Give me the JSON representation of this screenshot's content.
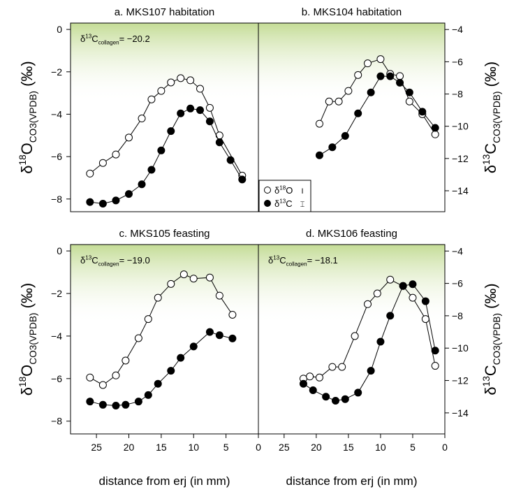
{
  "chart_data": {
    "type": "scatter",
    "xlabel": "distance from erj (in mm)",
    "left_ylabel": {
      "base": "δ",
      "sup": "18",
      "main": "O",
      "sub": "CO3(VPDB)",
      "tail": " (‰)"
    },
    "right_ylabel": {
      "base": "δ",
      "sup": "13",
      "main": "C",
      "sub": "CO3(VPDB)",
      "tail": " (‰)"
    },
    "x_range": [
      29,
      0
    ],
    "x_ticks": [
      25,
      20,
      15,
      10,
      5,
      0
    ],
    "left_y_range": [
      -8.6,
      0.3
    ],
    "left_y_ticks": [
      0,
      -2,
      -4,
      -6,
      -8
    ],
    "right_y_range": [
      -15.3,
      -3.6
    ],
    "right_y_ticks": [
      -4,
      -6,
      -8,
      -10,
      -12,
      -14
    ],
    "legend": {
      "position": "bottom-left of panel b",
      "items": [
        {
          "base": "δ",
          "sup": "18",
          "main": "O",
          "marker": "open-circle",
          "errorbar": "I"
        },
        {
          "base": "δ",
          "sup": "13",
          "main": "C",
          "marker": "filled-circle",
          "errorbar": "⌶"
        }
      ]
    },
    "panels": [
      {
        "id": "a",
        "title": "a. MKS107 habitation",
        "annotation": {
          "base": "δ",
          "sup": "13",
          "main": "C",
          "sub": "collagen",
          "value": "= −20.2"
        },
        "oxygen": {
          "x": [
            26,
            24,
            22,
            20,
            18,
            16.5,
            15,
            13.5,
            12,
            10.5,
            9,
            7.5,
            6,
            2.5
          ],
          "y": [
            -6.8,
            -6.3,
            -5.9,
            -5.1,
            -4.2,
            -3.3,
            -2.9,
            -2.5,
            -2.3,
            -2.4,
            -2.8,
            -3.7,
            -5.0,
            -6.9
          ]
        },
        "carbon": {
          "x": [
            26,
            24,
            22,
            20,
            18,
            16.5,
            15,
            13.5,
            12,
            10.5,
            9,
            7.5,
            6,
            4.3,
            2.5
          ],
          "y": [
            -14.7,
            -14.8,
            -14.6,
            -14.2,
            -13.6,
            -12.7,
            -11.5,
            -10.3,
            -9.2,
            -8.9,
            -9.0,
            -9.7,
            -11.0,
            -12.1,
            -13.3
          ]
        }
      },
      {
        "id": "b",
        "title": "b. MKS104 habitation",
        "annotation": null,
        "oxygen": {
          "x": [
            19.5,
            18,
            16.5,
            15,
            13.5,
            12,
            10,
            8.5,
            7,
            5.5,
            3.5,
            1.5
          ],
          "y": [
            -4.45,
            -3.4,
            -3.4,
            -2.9,
            -2.15,
            -1.6,
            -1.4,
            -2.1,
            -2.2,
            -3.4,
            -4.0,
            -4.95
          ]
        },
        "carbon": {
          "x": [
            19.5,
            17.5,
            15.5,
            13.5,
            11.5,
            10,
            8.5,
            7,
            5.5,
            3.5,
            1.5
          ],
          "y": [
            -11.8,
            -11.3,
            -10.6,
            -9.2,
            -7.9,
            -6.9,
            -6.9,
            -7.3,
            -7.9,
            -9.1,
            -10.1
          ]
        }
      },
      {
        "id": "c",
        "title": "c. MKS105 feasting",
        "annotation": {
          "base": "δ",
          "sup": "13",
          "main": "C",
          "sub": "collagen",
          "value": "= −19.0"
        },
        "oxygen": {
          "x": [
            26,
            24,
            22,
            20.5,
            18.5,
            17,
            15.5,
            13.5,
            11.5,
            10,
            7.5,
            6,
            4
          ],
          "y": [
            -5.95,
            -6.3,
            -5.85,
            -5.15,
            -4.1,
            -3.2,
            -2.2,
            -1.55,
            -1.1,
            -1.3,
            -1.25,
            -2.1,
            -3.0
          ]
        },
        "carbon": {
          "x": [
            26,
            24,
            22,
            20.5,
            18.5,
            17,
            15.5,
            13.5,
            12,
            10,
            7.5,
            6,
            4
          ],
          "y": [
            -13.3,
            -13.5,
            -13.55,
            -13.5,
            -13.3,
            -12.9,
            -12.2,
            -11.4,
            -10.6,
            -9.9,
            -9.0,
            -9.2,
            -9.4
          ]
        }
      },
      {
        "id": "d",
        "title": "d. MKS106 feasting",
        "annotation": {
          "base": "δ",
          "sup": "13",
          "main": "C",
          "sub": "collagen",
          "value": "= −18.1"
        },
        "oxygen": {
          "x": [
            22,
            21,
            19.5,
            17.5,
            16,
            14,
            12,
            10.5,
            8.5,
            6.5,
            5,
            3,
            1.5
          ],
          "y": [
            -6.0,
            -5.9,
            -5.95,
            -5.45,
            -5.45,
            -4.0,
            -2.5,
            -2.0,
            -1.35,
            -1.65,
            -2.2,
            -3.2,
            -5.4
          ]
        },
        "carbon": {
          "x": [
            22,
            20.5,
            18.5,
            17,
            15.5,
            13.5,
            11.5,
            10,
            8.5,
            6.5,
            5,
            3,
            1.5
          ],
          "y": [
            -12.2,
            -12.6,
            -13.0,
            -13.25,
            -13.15,
            -12.75,
            -11.4,
            -9.6,
            -8.0,
            -6.15,
            -6.05,
            -7.1,
            -10.15
          ]
        }
      }
    ]
  }
}
